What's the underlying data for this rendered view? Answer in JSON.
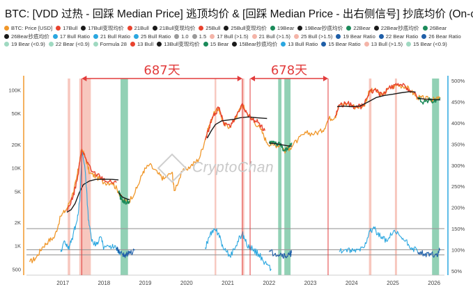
{
  "title": "BTC: [VDD 过热 - 回踩 Median Price] 逃顶均价 & [回踩 Median Price - 出右侧信号] 抄底均价 (On-chain",
  "legend": [
    {
      "label": "BTC: Price [USD]",
      "color": "#f0972a"
    },
    {
      "label": "17Bull",
      "color": "#e8432e"
    },
    {
      "label": "17Bull变现均价",
      "color": "#1a1a1a"
    },
    {
      "label": "21Bull",
      "color": "#e8432e"
    },
    {
      "label": "21Bull变现均价",
      "color": "#1a1a1a"
    },
    {
      "label": "25Bull",
      "color": "#e8432e"
    },
    {
      "label": "25Bull变现均价",
      "color": "#1a1a1a"
    },
    {
      "label": "19Bear",
      "color": "#1b8a5a"
    },
    {
      "label": "19Bear抄底均价",
      "color": "#1a1a1a"
    },
    {
      "label": "22Bear",
      "color": "#1b8a5a"
    },
    {
      "label": "22Bear抄底均价",
      "color": "#1a1a1a"
    },
    {
      "label": "26Bear",
      "color": "#1b8a5a"
    },
    {
      "label": "26Bear抄底均价",
      "color": "#1a1a1a"
    },
    {
      "label": "17 Bull Ratio",
      "color": "#2ba7e0"
    },
    {
      "label": "21 Bull Ratio",
      "color": "#2ba7e0"
    },
    {
      "label": "25 Bull Ratio",
      "color": "#2ba7e0"
    },
    {
      "label": "1.0",
      "color": "#9a9a9a"
    },
    {
      "label": "1.5",
      "color": "#9a9a9a"
    },
    {
      "label": "17 Bull (>1.5)",
      "color": "#f4b4a8"
    },
    {
      "label": "21 Bull (>1.5)",
      "color": "#f4b4a8"
    },
    {
      "label": "25 Bull (>1.5)",
      "color": "#f4b4a8"
    },
    {
      "label": "19 Bear Ratio",
      "color": "#1f5fa8"
    },
    {
      "label": "22 Bear Ratio",
      "color": "#1f5fa8"
    },
    {
      "label": "26 Bear Ratio",
      "color": "#1f5fa8"
    },
    {
      "label": "19 Bear (<0.9)",
      "color": "#9fd9c1"
    },
    {
      "label": "22 Bear (<0.9)",
      "color": "#9fd9c1"
    },
    {
      "label": "Formula 28",
      "color": "#9fd9c1"
    },
    {
      "label": "13 Bull",
      "color": "#e8432e"
    },
    {
      "label": "13Bull变现均价",
      "color": "#1a1a1a"
    },
    {
      "label": "15 Bear",
      "color": "#1b8a5a"
    },
    {
      "label": "15Bear抄底均价",
      "color": "#1a1a1a"
    },
    {
      "label": "13 Bull Ratio",
      "color": "#2ba7e0"
    },
    {
      "label": "15 Bear Ratio",
      "color": "#1f5fa8"
    },
    {
      "label": "13 Bull (>1.5)",
      "color": "#f4b4a8"
    },
    {
      "label": "15 Bear (<0.9)",
      "color": "#9fd9c1"
    }
  ],
  "watermark": "CryptoChan",
  "annotations": [
    {
      "text": "687天",
      "from": 2017.96,
      "to": 2021.85
    },
    {
      "text": "678天",
      "from": 2022.04,
      "to": 2023.93
    }
  ],
  "colors": {
    "price": "#f0972a",
    "bull": "#e8432e",
    "bear": "#1b8a5a",
    "avg": "#1a1a1a",
    "bull_ratio": "#2ba7e0",
    "bear_ratio": "#1f5fa8",
    "bull_band": "#f4b4a8",
    "bear_band": "#7fc9a8",
    "arrow": "#e23b3b",
    "right_axis": "#2ba7e0"
  },
  "chart_data": {
    "type": "line",
    "title": "BTC: [VDD 过热 - 回踩 Median Price] 逃顶均价 & [回踩 Median Price - 出右侧信号] 抄底均价 (On-chain",
    "x_ticks": [
      "2017",
      "2018",
      "2019",
      "2020",
      "2021",
      "2022",
      "2023",
      "2024",
      "2025",
      "2026"
    ],
    "y_left": {
      "scale": "log",
      "ticks": [
        "500",
        "1K",
        "2K",
        "5K",
        "10K",
        "20K",
        "50K",
        "100K"
      ],
      "tick_values": [
        500,
        1000,
        2000,
        5000,
        10000,
        20000,
        50000,
        100000
      ]
    },
    "y_right": {
      "scale": "linear",
      "ticks": [
        "50%",
        "100%",
        "150%",
        "200%",
        "250%",
        "300%",
        "350%",
        "400%",
        "450%",
        "500%"
      ],
      "tick_values": [
        50,
        100,
        150,
        200,
        250,
        300,
        350,
        400,
        450,
        500
      ],
      "range": [
        40,
        505
      ]
    },
    "hlines_right": [
      88,
      100,
      150
    ],
    "series": [
      {
        "name": "BTC: Price [USD]",
        "axis": "left",
        "x": [
          2016.7,
          2016.85,
          2017.0,
          2017.15,
          2017.3,
          2017.45,
          2017.6,
          2017.75,
          2017.83,
          2017.9,
          2017.96,
          2018.05,
          2018.15,
          2018.3,
          2018.5,
          2018.7,
          2018.85,
          2018.95,
          2019.1,
          2019.3,
          2019.45,
          2019.6,
          2019.8,
          2019.95,
          2020.15,
          2020.2,
          2020.4,
          2020.6,
          2020.8,
          2020.95,
          2021.05,
          2021.15,
          2021.28,
          2021.4,
          2021.55,
          2021.7,
          2021.85,
          2021.95,
          2022.1,
          2022.3,
          2022.45,
          2022.6,
          2022.8,
          2022.87,
          2023.0,
          2023.2,
          2023.4,
          2023.6,
          2023.8,
          2023.95,
          2024.1,
          2024.2,
          2024.4,
          2024.6,
          2024.8,
          2024.93,
          2025.05,
          2025.25,
          2025.4,
          2025.6,
          2025.8,
          2025.95,
          2026.1,
          2026.25,
          2026.4,
          2026.5,
          2026.65
        ],
        "values": [
          620,
          700,
          950,
          1150,
          1300,
          2400,
          3000,
          4800,
          7000,
          11500,
          17500,
          13500,
          8500,
          7800,
          6500,
          6500,
          5000,
          3800,
          3700,
          5500,
          9000,
          11000,
          8500,
          7200,
          8800,
          5100,
          9000,
          10500,
          13000,
          23000,
          35000,
          48000,
          58000,
          36000,
          34000,
          45000,
          65000,
          52000,
          42000,
          31000,
          21000,
          19500,
          19800,
          16500,
          18000,
          23000,
          28000,
          27500,
          30000,
          43000,
          45000,
          64000,
          67000,
          60000,
          63000,
          95000,
          100000,
          85000,
          105000,
          115000,
          112000,
          95000,
          80000,
          78000,
          76000,
          75000,
          79000
        ]
      },
      {
        "name": "17Bull",
        "axis": "left",
        "x": [
          2017.6,
          2017.75,
          2017.85,
          2017.96,
          2018.05,
          2018.2,
          2018.4,
          2018.6,
          2018.8
        ],
        "values": [
          2800,
          4300,
          7000,
          17000,
          13500,
          8900,
          7800,
          6600,
          6500
        ]
      },
      {
        "name": "17Bull变现均价",
        "axis": "left",
        "x": [
          2017.6,
          2017.7,
          2017.8,
          2017.9,
          2018.0,
          2018.15,
          2018.3,
          2018.5,
          2018.7,
          2018.85
        ],
        "values": [
          2700,
          2900,
          3500,
          4800,
          6100,
          6800,
          7100,
          7150,
          7100,
          7000
        ]
      },
      {
        "name": "21Bull",
        "axis": "left",
        "x": [
          2020.95,
          2021.05,
          2021.15,
          2021.28,
          2021.4,
          2021.55,
          2021.7,
          2021.85,
          2021.95,
          2022.1,
          2022.25,
          2022.4
        ],
        "values": [
          23000,
          33000,
          47000,
          58000,
          38000,
          34000,
          46000,
          67000,
          52000,
          42000,
          38000,
          30000
        ]
      },
      {
        "name": "21Bull变现均价",
        "axis": "left",
        "x": [
          2021.0,
          2021.1,
          2021.2,
          2021.35,
          2021.5,
          2021.65,
          2021.8,
          2022.0,
          2022.2,
          2022.45
        ],
        "values": [
          24000,
          30000,
          36000,
          40000,
          41000,
          42000,
          44000,
          45000,
          44000,
          43000
        ]
      },
      {
        "name": "25Bull",
        "axis": "left",
        "x": [
          2024.1,
          2024.2,
          2024.4,
          2024.6,
          2024.8,
          2024.93,
          2025.05,
          2025.25,
          2025.4,
          2025.6,
          2025.8,
          2025.95,
          2026.1
        ],
        "values": [
          45000,
          64000,
          67000,
          60000,
          63000,
          95000,
          100000,
          85000,
          105000,
          115000,
          112000,
          95000,
          80000
        ]
      },
      {
        "name": "25Bull变现均价",
        "axis": "left",
        "x": [
          2024.15,
          2024.3,
          2024.5,
          2024.7,
          2024.9,
          2025.1,
          2025.3,
          2025.5,
          2025.7,
          2025.9,
          2026.05
        ],
        "values": [
          61000,
          62000,
          61000,
          62000,
          70000,
          80000,
          85000,
          88000,
          92000,
          95000,
          94000
        ]
      },
      {
        "name": "19Bear",
        "axis": "left",
        "x": [
          2018.85,
          2018.92,
          2018.98,
          2019.05,
          2019.12
        ],
        "values": [
          5000,
          3900,
          3700,
          3600,
          3800
        ]
      },
      {
        "name": "19Bear抄底均价",
        "axis": "left",
        "x": [
          2018.85,
          2018.95,
          2019.05,
          2019.12
        ],
        "values": [
          4800,
          4200,
          4000,
          3900
        ]
      },
      {
        "name": "22Bear",
        "axis": "left",
        "x": [
          2022.5,
          2022.6,
          2022.7,
          2022.8,
          2022.87,
          2022.95,
          2023.05
        ],
        "values": [
          21000,
          22000,
          20000,
          19500,
          16500,
          17000,
          21000
        ]
      },
      {
        "name": "22Bear抄底均价",
        "axis": "left",
        "x": [
          2022.5,
          2022.65,
          2022.8,
          2022.95,
          2023.05
        ],
        "values": [
          20800,
          20500,
          19800,
          19200,
          19000
        ]
      },
      {
        "name": "26Bear",
        "axis": "left",
        "x": [
          2026.1,
          2026.25,
          2026.4,
          2026.5,
          2026.65
        ],
        "values": [
          80000,
          70000,
          74000,
          70000,
          79000
        ]
      },
      {
        "name": "26Bear抄底均价",
        "axis": "left",
        "x": [
          2026.1,
          2026.3,
          2026.5,
          2026.65
        ],
        "values": [
          78000,
          76000,
          75000,
          74500
        ]
      },
      {
        "name": "17 Bull Ratio",
        "axis": "right",
        "x": [
          2017.45,
          2017.55,
          2017.65,
          2017.75,
          2017.85,
          2017.92,
          2017.97,
          2018.05,
          2018.12,
          2018.2,
          2018.3,
          2018.4,
          2018.5,
          2018.65,
          2018.8,
          2018.9
        ],
        "values": [
          95,
          120,
          100,
          135,
          170,
          230,
          330,
          280,
          170,
          120,
          110,
          130,
          105,
          110,
          100,
          95
        ]
      },
      {
        "name": "21 Bull Ratio",
        "axis": "right",
        "x": [
          2020.95,
          2021.05,
          2021.15,
          2021.28,
          2021.4,
          2021.55,
          2021.7,
          2021.85,
          2021.95,
          2022.1,
          2022.25,
          2022.4,
          2022.55
        ],
        "values": [
          105,
          130,
          145,
          140,
          100,
          85,
          110,
          140,
          115,
          100,
          90,
          70,
          55
        ]
      },
      {
        "name": "25 Bull Ratio",
        "axis": "right",
        "x": [
          2024.2,
          2024.35,
          2024.5,
          2024.65,
          2024.8,
          2024.93,
          2025.05,
          2025.2,
          2025.35,
          2025.5,
          2025.65,
          2025.8,
          2025.95,
          2026.1
        ],
        "values": [
          95,
          100,
          95,
          100,
          105,
          145,
          150,
          130,
          120,
          140,
          135,
          120,
          105,
          95
        ]
      },
      {
        "name": "19 Bear Ratio",
        "axis": "right",
        "x": [
          2018.8,
          2018.9,
          2019.0,
          2019.1,
          2019.25
        ],
        "values": [
          105,
          92,
          88,
          90,
          100
        ]
      },
      {
        "name": "22 Bear Ratio",
        "axis": "right",
        "x": [
          2022.5,
          2022.65,
          2022.8,
          2022.9,
          2023.0,
          2023.05
        ],
        "values": [
          95,
          92,
          90,
          85,
          88,
          95
        ]
      },
      {
        "name": "26 Bear Ratio",
        "axis": "right",
        "x": [
          2026.1,
          2026.25,
          2026.4,
          2026.55,
          2026.65
        ],
        "values": [
          95,
          90,
          92,
          88,
          100
        ]
      }
    ],
    "bands": [
      {
        "name": "17 Bull (>1.5)",
        "from": 2017.62,
        "to": 2017.68
      },
      {
        "name": "17 Bull (>1.5)",
        "from": 2017.9,
        "to": 2018.18
      },
      {
        "name": "21 Bull (>1.5)",
        "from": 2021.18,
        "to": 2021.22
      },
      {
        "name": "21 Bull (>1.5)",
        "from": 2021.85,
        "to": 2021.9
      },
      {
        "name": "25 Bull (>1.5)",
        "from": 2024.92,
        "to": 2024.98
      },
      {
        "name": "25 Bull (>1.5)",
        "from": 2025.55,
        "to": 2025.6
      },
      {
        "name": "19 Bear (<0.9)",
        "from": 2018.9,
        "to": 2019.08
      },
      {
        "name": "22 Bear (<0.9)",
        "from": 2022.72,
        "to": 2022.8
      },
      {
        "name": "22 Bear (<0.9)",
        "from": 2022.87,
        "to": 2023.02
      },
      {
        "name": "15 Bear (<0.9)",
        "from": 2026.45,
        "to": 2026.62
      }
    ]
  }
}
